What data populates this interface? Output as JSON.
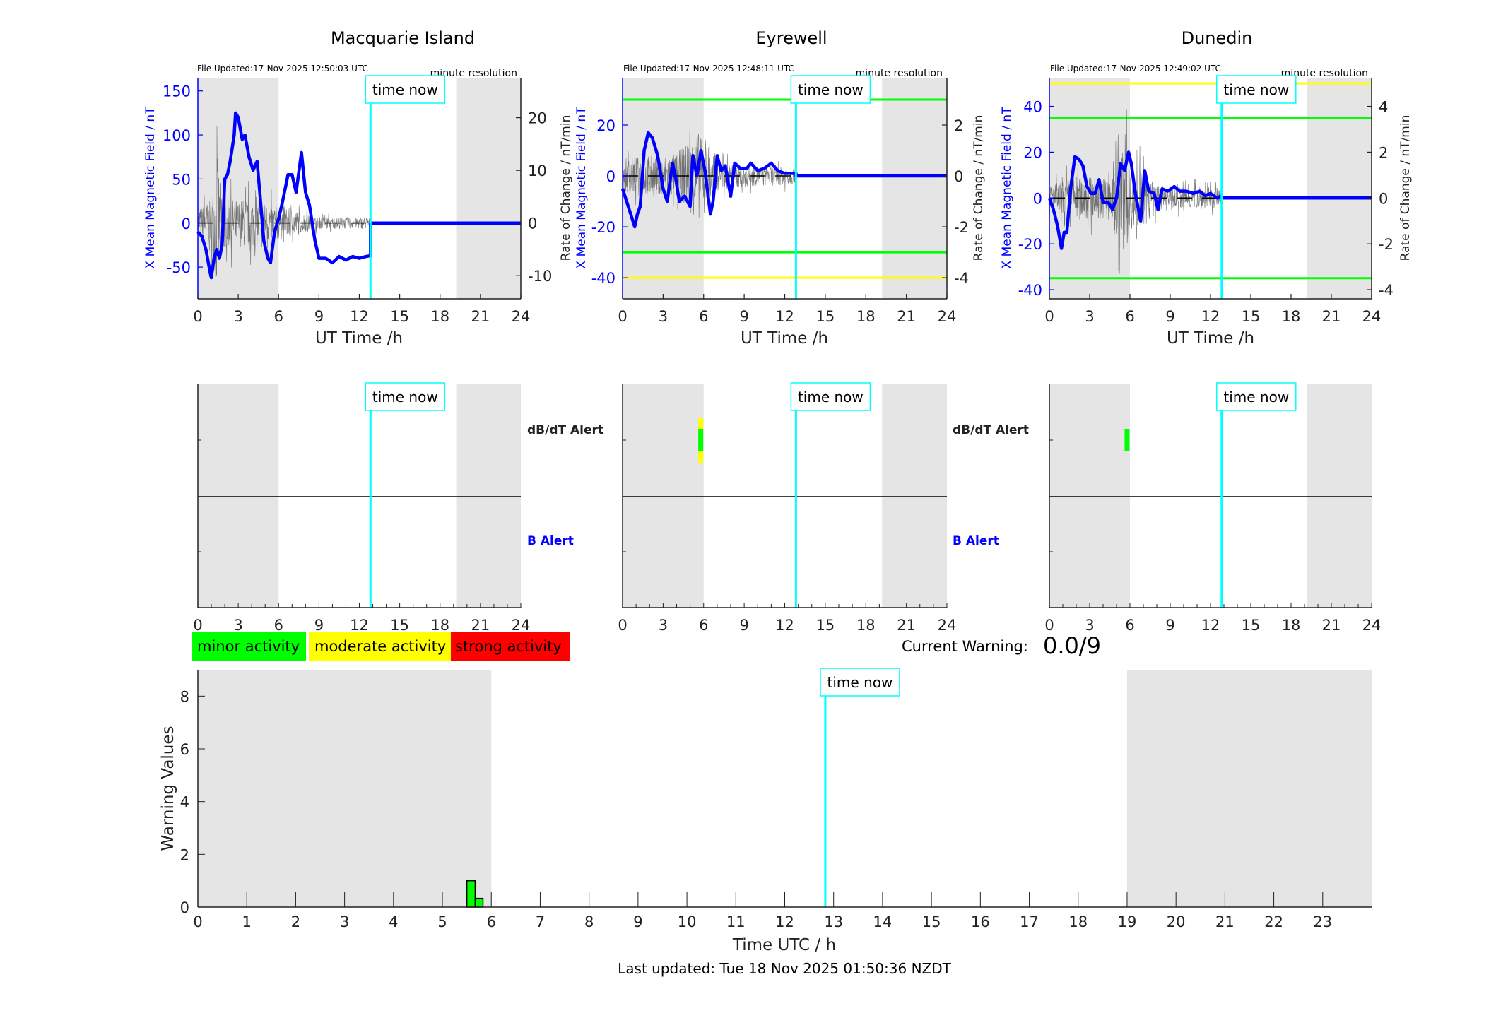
{
  "colors": {
    "shade": "#e5e5e5",
    "time_now": "#00ffff",
    "field": "#0000ff",
    "dbdt": "#555555",
    "minor": "#00ff00",
    "moderate": "#ffff00",
    "strong": "#ff0000"
  },
  "time_now_label": "time now",
  "resolution_label": "minute resolution",
  "alert_labels": {
    "dbdt": "dB/dT Alert",
    "b": "B Alert"
  },
  "legend": {
    "minor": "minor activity",
    "moderate": "moderate activity",
    "strong": "strong activity"
  },
  "current_warning": {
    "label": "Current Warning:",
    "value": "0.0/9"
  },
  "last_updated": "Last updated: Tue 18 Nov 2025 01:50:36 NZDT",
  "chart_data": [
    {
      "type": "line",
      "title": "Macquarie Island",
      "file_updated": "File Updated:17-Nov-2025 12:50:03 UTC",
      "xlabel": "UT Time /h",
      "ylabel": "X Mean Magnetic Field / nT",
      "y2label": "Rate of Change / nT/min",
      "xlim": [
        0,
        24
      ],
      "xticks": [
        0,
        3,
        6,
        9,
        12,
        15,
        18,
        21,
        24
      ],
      "ylim": [
        -86,
        165
      ],
      "yticks": [
        -50,
        0,
        50,
        100,
        150
      ],
      "y2lim": [
        -14.4,
        27.6
      ],
      "y2ticks": [
        -10,
        0,
        10,
        20
      ],
      "shaded": [
        [
          0,
          6
        ],
        [
          19.2,
          24
        ]
      ],
      "time_now": 12.83,
      "thresholds": [],
      "b_series": [
        [
          0,
          -10
        ],
        [
          0.3,
          -15
        ],
        [
          0.6,
          -30
        ],
        [
          0.9,
          -55
        ],
        [
          1.0,
          -62
        ],
        [
          1.2,
          -40
        ],
        [
          1.4,
          -30
        ],
        [
          1.6,
          -40
        ],
        [
          1.8,
          -25
        ],
        [
          2.0,
          50
        ],
        [
          2.2,
          55
        ],
        [
          2.4,
          70
        ],
        [
          2.7,
          100
        ],
        [
          2.8,
          125
        ],
        [
          3.0,
          120
        ],
        [
          3.3,
          95
        ],
        [
          3.5,
          100
        ],
        [
          3.8,
          75
        ],
        [
          4.1,
          60
        ],
        [
          4.4,
          70
        ],
        [
          4.6,
          35
        ],
        [
          4.9,
          -20
        ],
        [
          5.2,
          -40
        ],
        [
          5.4,
          -45
        ],
        [
          5.7,
          -10
        ],
        [
          6.0,
          5
        ],
        [
          6.3,
          25
        ],
        [
          6.7,
          55
        ],
        [
          7.0,
          55
        ],
        [
          7.3,
          35
        ],
        [
          7.7,
          80
        ],
        [
          8.0,
          35
        ],
        [
          8.3,
          20
        ],
        [
          8.7,
          -20
        ],
        [
          9.0,
          -40
        ],
        [
          9.5,
          -40
        ],
        [
          10.0,
          -45
        ],
        [
          10.5,
          -38
        ],
        [
          11.0,
          -42
        ],
        [
          11.5,
          -38
        ],
        [
          12.0,
          -40
        ],
        [
          12.5,
          -38
        ],
        [
          12.83,
          -37
        ],
        [
          12.83,
          0
        ],
        [
          24,
          0
        ]
      ],
      "dbdt_envelope": [
        [
          0,
          5
        ],
        [
          1,
          8
        ],
        [
          1.4,
          24
        ],
        [
          2,
          9
        ],
        [
          3,
          8
        ],
        [
          4,
          9
        ],
        [
          5,
          7
        ],
        [
          6,
          6
        ],
        [
          7,
          5
        ],
        [
          8,
          3
        ],
        [
          9,
          2
        ],
        [
          12.83,
          2
        ]
      ],
      "alerts": {
        "dbdt": [],
        "b": []
      }
    },
    {
      "type": "line",
      "title": "Eyrewell",
      "file_updated": "File Updated:17-Nov-2025 12:48:11 UTC",
      "xlabel": "UT Time /h",
      "ylabel": "X Mean Magnetic Field / nT",
      "y2label": "Rate of Change / nT/min",
      "xlim": [
        0,
        24
      ],
      "xticks": [
        0,
        3,
        6,
        9,
        12,
        15,
        18,
        21,
        24
      ],
      "ylim": [
        -48.3,
        38.6
      ],
      "yticks": [
        -40,
        -20,
        0,
        20
      ],
      "y2lim": [
        -4.83,
        3.86
      ],
      "y2ticks": [
        -4,
        -2,
        0,
        2
      ],
      "shaded": [
        [
          0,
          6
        ],
        [
          19.2,
          24
        ]
      ],
      "time_now": 12.83,
      "thresholds": [
        {
          "value": 30,
          "color": "#00ff00"
        },
        {
          "value": -30,
          "color": "#00ff00"
        },
        {
          "value": -40,
          "color": "#ffff00"
        }
      ],
      "b_series": [
        [
          0,
          -5
        ],
        [
          0.3,
          -10
        ],
        [
          0.6,
          -15
        ],
        [
          0.9,
          -20
        ],
        [
          1.1,
          -15
        ],
        [
          1.3,
          -12
        ],
        [
          1.6,
          10
        ],
        [
          1.9,
          17
        ],
        [
          2.2,
          15
        ],
        [
          2.6,
          8
        ],
        [
          3.0,
          -5
        ],
        [
          3.3,
          -10
        ],
        [
          3.7,
          5
        ],
        [
          3.9,
          0
        ],
        [
          4.2,
          -10
        ],
        [
          4.6,
          -8
        ],
        [
          5.0,
          -12
        ],
        [
          5.2,
          8
        ],
        [
          5.5,
          0
        ],
        [
          5.8,
          10
        ],
        [
          6.1,
          2
        ],
        [
          6.5,
          -15
        ],
        [
          6.7,
          -10
        ],
        [
          7.0,
          8
        ],
        [
          7.3,
          2
        ],
        [
          7.6,
          4
        ],
        [
          8.0,
          -8
        ],
        [
          8.3,
          5
        ],
        [
          8.7,
          3
        ],
        [
          9.2,
          3
        ],
        [
          9.5,
          5
        ],
        [
          10,
          2
        ],
        [
          10.5,
          3
        ],
        [
          11.0,
          5
        ],
        [
          11.5,
          2
        ],
        [
          12.0,
          1
        ],
        [
          12.5,
          1
        ],
        [
          12.83,
          1
        ],
        [
          12.83,
          0
        ],
        [
          24,
          0
        ]
      ],
      "dbdt_envelope": [
        [
          0,
          1.2
        ],
        [
          2,
          1.5
        ],
        [
          4,
          1.6
        ],
        [
          5.6,
          3.2
        ],
        [
          6,
          2.2
        ],
        [
          6.5,
          2.4
        ],
        [
          7,
          1.0
        ],
        [
          9,
          0.8
        ],
        [
          12.83,
          0.6
        ]
      ],
      "alerts": {
        "dbdt": [
          {
            "start": 5.6,
            "end": 5.8,
            "level": "moderate"
          },
          {
            "start": 5.6,
            "end": 5.8,
            "level": "minor"
          }
        ],
        "b": []
      }
    },
    {
      "type": "line",
      "title": "Dunedin",
      "file_updated": "File Updated:17-Nov-2025 12:49:02 UTC",
      "xlabel": "UT Time /h",
      "ylabel": "X Mean Magnetic Field / nT",
      "y2label": "Rate of Change / nT/min",
      "xlim": [
        0,
        24
      ],
      "xticks": [
        0,
        3,
        6,
        9,
        12,
        15,
        18,
        21,
        24
      ],
      "ylim": [
        -44,
        52.5
      ],
      "yticks": [
        -40,
        -20,
        0,
        20,
        40
      ],
      "y2lim": [
        -4.4,
        5.25
      ],
      "y2ticks": [
        -4,
        -2,
        0,
        2,
        4
      ],
      "shaded": [
        [
          0,
          6
        ],
        [
          19.2,
          24
        ]
      ],
      "time_now": 12.83,
      "thresholds": [
        {
          "value": 50,
          "color": "#ffff00"
        },
        {
          "value": 35,
          "color": "#00ff00"
        },
        {
          "value": -35,
          "color": "#00ff00"
        }
      ],
      "b_series": [
        [
          0,
          0
        ],
        [
          0.3,
          -5
        ],
        [
          0.6,
          -12
        ],
        [
          0.9,
          -22
        ],
        [
          1.1,
          -15
        ],
        [
          1.3,
          -15
        ],
        [
          1.6,
          5
        ],
        [
          1.9,
          18
        ],
        [
          2.2,
          17
        ],
        [
          2.5,
          14
        ],
        [
          2.8,
          5
        ],
        [
          3.1,
          2
        ],
        [
          3.4,
          2
        ],
        [
          3.7,
          8
        ],
        [
          4.0,
          -2
        ],
        [
          4.4,
          -2
        ],
        [
          4.7,
          -5
        ],
        [
          5.0,
          0
        ],
        [
          5.3,
          15
        ],
        [
          5.6,
          12
        ],
        [
          5.9,
          20
        ],
        [
          6.1,
          15
        ],
        [
          6.4,
          2
        ],
        [
          6.8,
          -10
        ],
        [
          7.1,
          12
        ],
        [
          7.4,
          3
        ],
        [
          7.8,
          2
        ],
        [
          8.1,
          -5
        ],
        [
          8.4,
          4
        ],
        [
          8.8,
          3
        ],
        [
          9.3,
          5
        ],
        [
          9.7,
          3
        ],
        [
          10.2,
          3
        ],
        [
          10.7,
          2
        ],
        [
          11.2,
          3
        ],
        [
          11.6,
          1
        ],
        [
          12.0,
          2
        ],
        [
          12.5,
          0
        ],
        [
          12.83,
          1
        ],
        [
          12.83,
          0
        ],
        [
          24,
          0
        ]
      ],
      "dbdt_envelope": [
        [
          0,
          1.0
        ],
        [
          2,
          1.8
        ],
        [
          4,
          1.6
        ],
        [
          5.7,
          4.6
        ],
        [
          6,
          2.5
        ],
        [
          7,
          2.4
        ],
        [
          8,
          1.0
        ],
        [
          12.83,
          0.8
        ]
      ],
      "alerts": {
        "dbdt": [
          {
            "start": 5.6,
            "end": 5.8,
            "level": "minor"
          }
        ],
        "b": []
      }
    },
    {
      "type": "bar",
      "title": "",
      "xlabel": "Time UTC / h",
      "ylabel": "Warning Values",
      "xlim": [
        0,
        24
      ],
      "xticks": [
        0,
        1,
        2,
        3,
        4,
        5,
        6,
        7,
        8,
        9,
        10,
        11,
        12,
        13,
        14,
        15,
        16,
        17,
        18,
        19,
        20,
        21,
        22,
        23
      ],
      "ylim": [
        0,
        9
      ],
      "yticks": [
        0,
        2,
        4,
        6,
        8
      ],
      "shaded": [
        [
          0,
          6
        ],
        [
          19,
          24
        ]
      ],
      "time_now": 12.83,
      "bars": [
        {
          "start": 5.5,
          "end": 5.67,
          "value": 1.0,
          "color": "#00ff00"
        },
        {
          "start": 5.67,
          "end": 5.83,
          "value": 0.33,
          "color": "#00ff00"
        }
      ]
    }
  ]
}
